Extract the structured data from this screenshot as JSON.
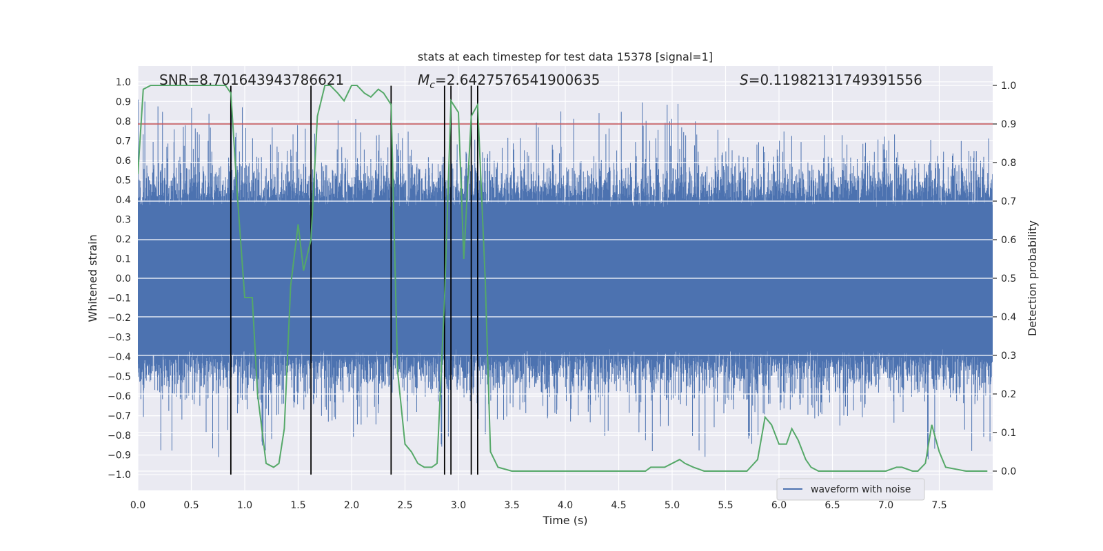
{
  "chart_data": {
    "type": "line",
    "title": "stats at each timestep for test data 15378 [signal=1]",
    "xlabel": "Time (s)",
    "ylabel_left": "Whitened strain",
    "ylabel_right": "Detection probability",
    "xlim": [
      0.0,
      8.0
    ],
    "ylim_left": [
      -1.08,
      1.08
    ],
    "ylim_right": [
      -0.05,
      1.05
    ],
    "x_ticks": [
      0.0,
      0.5,
      1.0,
      1.5,
      2.0,
      2.5,
      3.0,
      3.5,
      4.0,
      4.5,
      5.0,
      5.5,
      6.0,
      6.5,
      7.0,
      7.5
    ],
    "x_tick_labels": [
      "0.0",
      "0.5",
      "1.0",
      "1.5",
      "2.0",
      "2.5",
      "3.0",
      "3.5",
      "4.0",
      "4.5",
      "5.0",
      "5.5",
      "6.0",
      "6.5",
      "7.0",
      "7.5"
    ],
    "y_left_ticks": [
      1.0,
      0.9,
      0.8,
      0.7,
      0.6,
      0.5,
      0.4,
      0.3,
      0.2,
      0.1,
      0.0,
      -0.1,
      -0.2,
      -0.3,
      -0.4,
      -0.5,
      -0.6,
      -0.7,
      -0.8,
      -0.9,
      -1.0
    ],
    "y_left_tick_labels": [
      "1.0",
      "0.9",
      "0.8",
      "0.7",
      "0.6",
      "0.5",
      "0.4",
      "0.3",
      "0.2",
      "0.1",
      "0.0",
      "−0.1",
      "−0.2",
      "−0.3",
      "−0.4",
      "−0.5",
      "−0.6",
      "−0.7",
      "−0.8",
      "−0.9",
      "−1.0"
    ],
    "y_right_ticks": [
      1.0,
      0.9,
      0.8,
      0.7,
      0.6,
      0.5,
      0.4,
      0.3,
      0.2,
      0.1,
      0.0
    ],
    "y_right_tick_labels": [
      "1.0",
      "0.9",
      "0.8",
      "0.7",
      "0.6",
      "0.5",
      "0.4",
      "0.3",
      "0.2",
      "0.1",
      "0.0"
    ],
    "threshold": 0.9,
    "threshold_color": "#c44e52",
    "annotations": {
      "snr": "SNR=8.701643943786621",
      "mc_symbol": "M",
      "mc_sub": "c",
      "mc_value": "=2.6427576541900635",
      "s_symbol": "S",
      "s_value": "=0.11982131749391556"
    },
    "vertical_lines": [
      0.87,
      1.62,
      2.37,
      2.87,
      2.93,
      3.12,
      3.18
    ],
    "probability": {
      "name": "detection probability",
      "color": "#55a868",
      "x": [
        0.0,
        0.05,
        0.12,
        0.3,
        0.5,
        0.7,
        0.82,
        0.87,
        0.93,
        1.0,
        1.07,
        1.12,
        1.2,
        1.27,
        1.32,
        1.37,
        1.43,
        1.5,
        1.55,
        1.62,
        1.68,
        1.75,
        1.8,
        1.87,
        1.93,
        2.0,
        2.05,
        2.12,
        2.18,
        2.25,
        2.3,
        2.37,
        2.43,
        2.5,
        2.56,
        2.62,
        2.68,
        2.75,
        2.8,
        2.87,
        2.93,
        3.0,
        3.05,
        3.12,
        3.18,
        3.25,
        3.3,
        3.37,
        3.5,
        3.62,
        3.75,
        3.87,
        4.0,
        4.25,
        4.5,
        4.75,
        4.8,
        4.87,
        4.93,
        5.0,
        5.07,
        5.12,
        5.2,
        5.3,
        5.5,
        5.7,
        5.8,
        5.87,
        5.93,
        6.0,
        6.07,
        6.12,
        6.18,
        6.25,
        6.3,
        6.37,
        6.5,
        6.75,
        6.9,
        7.0,
        7.1,
        7.15,
        7.25,
        7.3,
        7.37,
        7.43,
        7.5,
        7.56,
        7.75,
        7.95
      ],
      "values": [
        0.77,
        0.99,
        1.0,
        1.0,
        1.0,
        1.0,
        1.0,
        0.98,
        0.72,
        0.45,
        0.45,
        0.2,
        0.02,
        0.01,
        0.02,
        0.11,
        0.48,
        0.64,
        0.52,
        0.6,
        0.92,
        1.0,
        1.0,
        0.98,
        0.96,
        1.0,
        1.0,
        0.98,
        0.97,
        0.99,
        0.98,
        0.95,
        0.26,
        0.07,
        0.05,
        0.02,
        0.01,
        0.01,
        0.02,
        0.45,
        0.96,
        0.93,
        0.55,
        0.92,
        0.95,
        0.5,
        0.05,
        0.01,
        0.0,
        0.0,
        0.0,
        0.0,
        0.0,
        0.0,
        0.0,
        0.0,
        0.01,
        0.01,
        0.01,
        0.02,
        0.03,
        0.02,
        0.01,
        0.0,
        0.0,
        0.0,
        0.03,
        0.14,
        0.12,
        0.07,
        0.07,
        0.11,
        0.08,
        0.03,
        0.01,
        0.0,
        0.0,
        0.0,
        0.0,
        0.0,
        0.01,
        0.01,
        0.0,
        0.0,
        0.02,
        0.12,
        0.05,
        0.01,
        0.0,
        0.0
      ]
    },
    "waveform": {
      "name": "waveform with noise",
      "color": "#4c72b0",
      "sample_rate_hz": 2048,
      "envelope_x": [
        0,
        0.5,
        1,
        1.5,
        2,
        2.5,
        3,
        3.5,
        4,
        4.5,
        5,
        5.5,
        6,
        6.5,
        7,
        7.5,
        8
      ],
      "envelope_upper": [
        0.95,
        0.92,
        0.88,
        0.78,
        0.82,
        0.75,
        0.78,
        0.72,
        0.89,
        0.87,
        0.97,
        0.72,
        0.75,
        0.73,
        0.74,
        0.72,
        0.8
      ],
      "envelope_lower": [
        -0.9,
        -0.88,
        -1.0,
        -0.76,
        -0.82,
        -0.77,
        -0.92,
        -0.7,
        -0.72,
        -0.86,
        -0.94,
        -0.94,
        -0.8,
        -0.76,
        -0.75,
        -0.99,
        -0.84
      ]
    },
    "legend": {
      "entries": [
        "waveform with noise"
      ],
      "location": "lower-right"
    },
    "grid": true
  }
}
